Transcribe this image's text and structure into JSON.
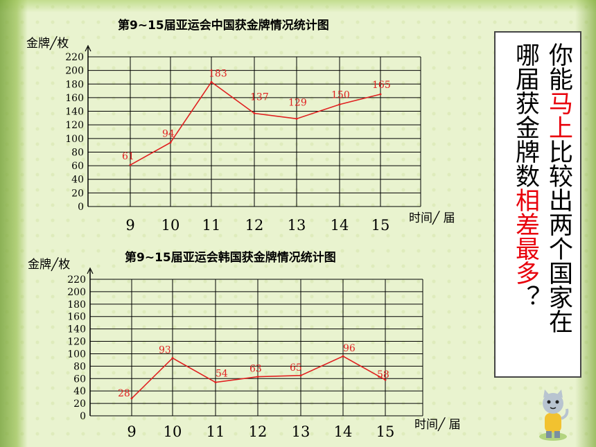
{
  "charts": [
    {
      "title": "第9~15届亚运会中国获金牌情况统计图",
      "ylabel": "金牌╱枚",
      "xlabel": "时间╱ 届"
    },
    {
      "title": "第9~15届亚运会韩国获金牌情况统计图",
      "ylabel": "金牌╱枚",
      "xlabel": "时间╱ 届"
    }
  ],
  "chart_data": [
    {
      "type": "line",
      "title": "第9~15届亚运会中国获金牌情况统计图",
      "xlabel": "时间╱ 届",
      "ylabel": "金牌╱枚",
      "categories": [
        "9",
        "10",
        "11",
        "12",
        "13",
        "14",
        "15"
      ],
      "values": [
        61,
        94,
        183,
        137,
        129,
        150,
        165
      ],
      "yticks": [
        0,
        20,
        40,
        60,
        80,
        100,
        120,
        140,
        160,
        180,
        200,
        220
      ],
      "ylim": [
        0,
        220
      ],
      "grid": true,
      "line_color": "#e02020"
    },
    {
      "type": "line",
      "title": "第9~15届亚运会韩国获金牌情况统计图",
      "xlabel": "时间╱ 届",
      "ylabel": "金牌╱枚",
      "categories": [
        "9",
        "10",
        "11",
        "12",
        "13",
        "14",
        "15"
      ],
      "values": [
        28,
        93,
        54,
        63,
        65,
        96,
        58
      ],
      "yticks": [
        0,
        20,
        40,
        60,
        80,
        100,
        120,
        140,
        160,
        180,
        200,
        220
      ],
      "ylim": [
        0,
        220
      ],
      "grid": true,
      "line_color": "#e02020"
    }
  ],
  "question": {
    "col1": [
      {
        "text": "你能",
        "color": "black"
      },
      {
        "text": "马上",
        "color": "red"
      },
      {
        "text": "比较出两个国家在",
        "color": "black"
      }
    ],
    "col2": [
      {
        "text": "哪届获金牌数",
        "color": "black"
      },
      {
        "text": "相差最多",
        "color": "red"
      },
      {
        "text": "？",
        "color": "black"
      }
    ]
  }
}
